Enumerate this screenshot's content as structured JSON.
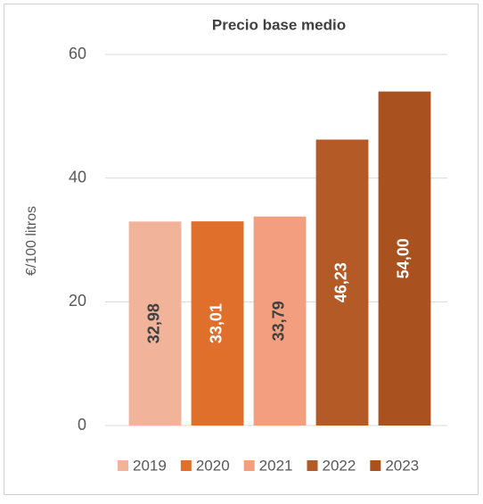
{
  "chart_data": {
    "type": "bar",
    "title": "Precio base medio",
    "y_label": "€/100 litros",
    "categories": [
      "2019",
      "2020",
      "2021",
      "2022",
      "2023"
    ],
    "values": [
      32.98,
      33.01,
      33.79,
      46.23,
      54.0
    ],
    "value_labels": [
      "32,98",
      "33,01",
      "33,79",
      "46,23",
      "54,00"
    ],
    "colors": [
      "#f2b39b",
      "#e06f2c",
      "#f29e7f",
      "#b45a27",
      "#a9521f"
    ],
    "ylim": [
      0,
      60
    ],
    "yticks": [
      0,
      20,
      40,
      60
    ],
    "grid": true,
    "legend": "bottom"
  }
}
